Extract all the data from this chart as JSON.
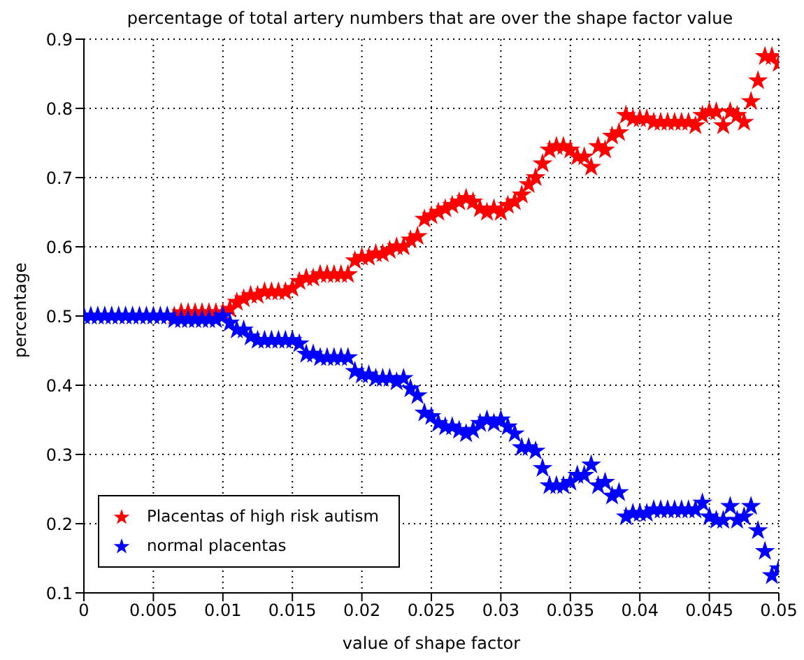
{
  "chart_data": {
    "type": "scatter",
    "title": "percentage of total artery numbers that are over the shape factor value",
    "xlabel": "value of shape factor",
    "ylabel": "percentage",
    "x": [
      0,
      0.0005,
      0.001,
      0.0015,
      0.002,
      0.0025,
      0.003,
      0.0035,
      0.004,
      0.0045,
      0.005,
      0.0055,
      0.006,
      0.0065,
      0.007,
      0.0075,
      0.008,
      0.0085,
      0.009,
      0.0095,
      0.01,
      0.0105,
      0.011,
      0.0115,
      0.012,
      0.0125,
      0.013,
      0.0135,
      0.014,
      0.0145,
      0.015,
      0.0155,
      0.016,
      0.0165,
      0.017,
      0.0175,
      0.018,
      0.0185,
      0.019,
      0.0195,
      0.02,
      0.0205,
      0.021,
      0.0215,
      0.022,
      0.0225,
      0.023,
      0.0235,
      0.024,
      0.0245,
      0.025,
      0.0255,
      0.026,
      0.0265,
      0.027,
      0.0275,
      0.028,
      0.0285,
      0.029,
      0.0295,
      0.03,
      0.0305,
      0.031,
      0.0315,
      0.032,
      0.0325,
      0.033,
      0.0335,
      0.034,
      0.0345,
      0.035,
      0.0355,
      0.036,
      0.0365,
      0.037,
      0.0375,
      0.038,
      0.0385,
      0.039,
      0.0395,
      0.04,
      0.0405,
      0.041,
      0.0415,
      0.042,
      0.0425,
      0.043,
      0.0435,
      0.044,
      0.0445,
      0.045,
      0.0455,
      0.046,
      0.0465,
      0.047,
      0.0475,
      0.048,
      0.0485,
      0.049,
      0.0495,
      0.05
    ],
    "series": [
      {
        "name": "Placentas of high risk autism",
        "color": "#ff0000",
        "values": [
          null,
          null,
          null,
          null,
          null,
          null,
          null,
          null,
          null,
          null,
          null,
          null,
          null,
          0.5,
          0.505,
          0.505,
          0.505,
          0.505,
          0.505,
          0.505,
          0.505,
          0.51,
          0.52,
          0.525,
          0.53,
          0.53,
          0.535,
          0.535,
          0.535,
          0.535,
          0.54,
          0.55,
          0.555,
          0.555,
          0.56,
          0.56,
          0.56,
          0.56,
          0.56,
          0.58,
          0.585,
          0.585,
          0.59,
          0.59,
          0.595,
          0.6,
          0.6,
          0.61,
          0.615,
          0.64,
          0.645,
          0.65,
          0.655,
          0.66,
          0.665,
          0.67,
          0.665,
          0.655,
          0.65,
          0.655,
          0.65,
          0.66,
          0.665,
          0.675,
          0.69,
          0.7,
          0.72,
          0.74,
          0.745,
          0.745,
          0.74,
          0.73,
          0.73,
          0.715,
          0.745,
          0.74,
          0.76,
          0.765,
          0.79,
          0.785,
          0.785,
          0.785,
          0.78,
          0.78,
          0.78,
          0.78,
          0.78,
          0.78,
          0.775,
          0.79,
          0.795,
          0.795,
          0.775,
          0.795,
          0.79,
          0.78,
          0.81,
          0.84,
          0.875,
          0.875,
          0.865
        ]
      },
      {
        "name": "normal placentas",
        "color": "#0000ff",
        "values": [
          0.5,
          0.5,
          0.5,
          0.5,
          0.5,
          0.5,
          0.5,
          0.5,
          0.5,
          0.5,
          0.5,
          0.5,
          0.5,
          0.495,
          0.495,
          0.495,
          0.495,
          0.495,
          0.495,
          0.495,
          0.5,
          0.49,
          0.48,
          0.48,
          0.47,
          0.465,
          0.465,
          0.465,
          0.465,
          0.465,
          0.465,
          0.46,
          0.445,
          0.445,
          0.44,
          0.44,
          0.44,
          0.44,
          0.44,
          0.42,
          0.415,
          0.415,
          0.41,
          0.41,
          0.41,
          0.405,
          0.41,
          0.395,
          0.385,
          0.36,
          0.355,
          0.345,
          0.34,
          0.34,
          0.335,
          0.33,
          0.335,
          0.345,
          0.35,
          0.345,
          0.35,
          0.34,
          0.33,
          0.31,
          0.31,
          0.305,
          0.28,
          0.255,
          0.255,
          0.255,
          0.26,
          0.27,
          0.27,
          0.285,
          0.255,
          0.26,
          0.24,
          0.245,
          0.21,
          0.215,
          0.215,
          0.215,
          0.22,
          0.22,
          0.22,
          0.22,
          0.22,
          0.22,
          0.22,
          0.23,
          0.21,
          0.205,
          0.205,
          0.225,
          0.205,
          0.21,
          0.225,
          0.19,
          0.16,
          0.125,
          0.135
        ]
      }
    ],
    "xlim": [
      0,
      0.05
    ],
    "xticks": [
      0,
      0.005,
      0.01,
      0.015,
      0.02,
      0.025,
      0.03,
      0.035,
      0.04,
      0.045,
      0.05
    ],
    "ylim": [
      0.1,
      0.9
    ],
    "yticks": [
      0.1,
      0.2,
      0.3,
      0.4,
      0.5,
      0.6,
      0.7,
      0.8,
      0.9
    ],
    "grid": true,
    "legend": "bottom left",
    "marker": "star"
  }
}
